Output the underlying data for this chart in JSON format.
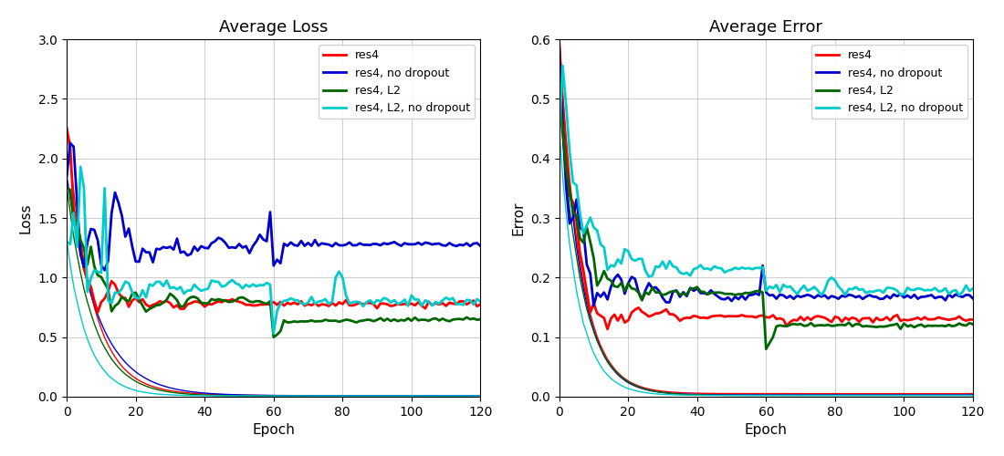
{
  "title_loss": "Average Loss",
  "title_error": "Average Error",
  "xlabel": "Epoch",
  "ylabel_loss": "Loss",
  "ylabel_error": "Error",
  "xlim": [
    0,
    120
  ],
  "ylim_loss": [
    0,
    3.0
  ],
  "ylim_error": [
    0,
    0.6
  ],
  "legend_labels": [
    "res4",
    "res4, no dropout",
    "res4, L2",
    "res4, L2, no dropout"
  ],
  "colors": {
    "res4": "#ff0000",
    "res4_nodropout": "#0000cc",
    "res4_l2": "#006600",
    "res4_l2_nodropout": "#00cccc"
  },
  "seed": 12345
}
